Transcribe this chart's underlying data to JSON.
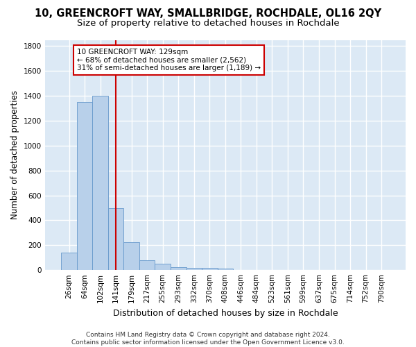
{
  "title1": "10, GREENCROFT WAY, SMALLBRIDGE, ROCHDALE, OL16 2QY",
  "title2": "Size of property relative to detached houses in Rochdale",
  "xlabel": "Distribution of detached houses by size in Rochdale",
  "ylabel": "Number of detached properties",
  "bar_values": [
    140,
    1350,
    1400,
    495,
    225,
    80,
    50,
    25,
    15,
    20,
    10,
    0,
    0,
    0,
    0,
    0,
    0,
    0,
    0,
    0,
    0
  ],
  "bar_labels": [
    "26sqm",
    "64sqm",
    "102sqm",
    "141sqm",
    "179sqm",
    "217sqm",
    "255sqm",
    "293sqm",
    "332sqm",
    "370sqm",
    "408sqm",
    "446sqm",
    "484sqm",
    "523sqm",
    "561sqm",
    "599sqm",
    "637sqm",
    "675sqm",
    "714sqm",
    "752sqm",
    "790sqm"
  ],
  "bar_color": "#b8d0ea",
  "bar_edge_color": "#6699cc",
  "vline_color": "#cc0000",
  "annotation_text": "10 GREENCROFT WAY: 129sqm\n← 68% of detached houses are smaller (2,562)\n31% of semi-detached houses are larger (1,189) →",
  "annotation_box_color": "#cc0000",
  "ylim": [
    0,
    1850
  ],
  "yticks": [
    0,
    200,
    400,
    600,
    800,
    1000,
    1200,
    1400,
    1600,
    1800
  ],
  "bg_color": "#dce9f5",
  "grid_color": "#ffffff",
  "footnote": "Contains HM Land Registry data © Crown copyright and database right 2024.\nContains public sector information licensed under the Open Government Licence v3.0.",
  "title1_fontsize": 10.5,
  "title2_fontsize": 9.5,
  "xlabel_fontsize": 9,
  "ylabel_fontsize": 8.5,
  "tick_fontsize": 7.5,
  "footnote_fontsize": 6.5
}
